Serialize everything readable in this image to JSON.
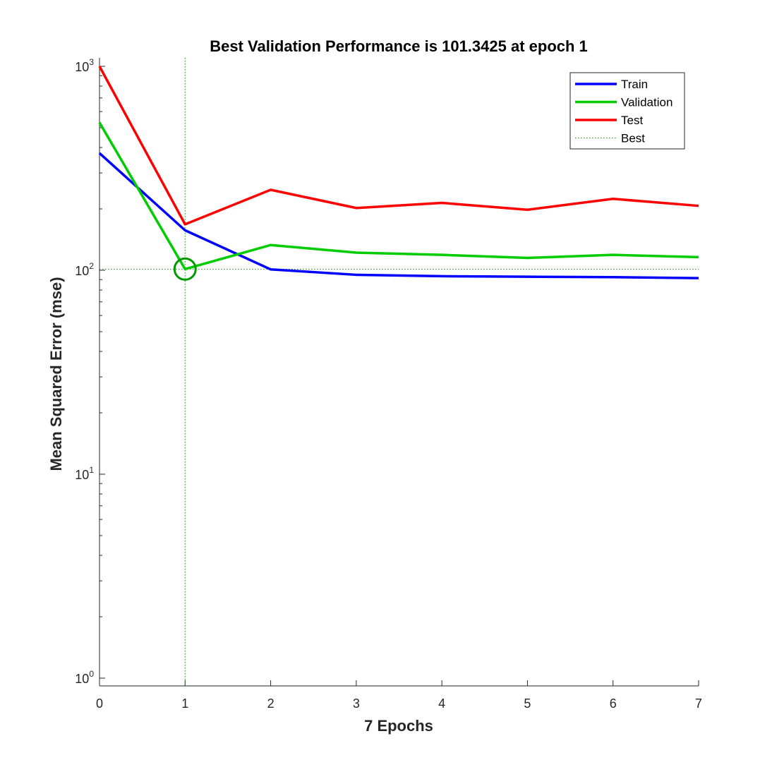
{
  "chart_data": {
    "type": "line",
    "title": "Best Validation Performance is 101.3425 at epoch 1",
    "xlabel": "7 Epochs",
    "ylabel": "Mean Squared Error  (mse)",
    "x": [
      0,
      1,
      2,
      3,
      4,
      5,
      6,
      7
    ],
    "xlim": [
      0,
      7
    ],
    "ylim": [
      0.9,
      1000
    ],
    "yscale": "log",
    "x_ticks": [
      0,
      1,
      2,
      3,
      4,
      5,
      6,
      7
    ],
    "y_ticks": [
      {
        "value": 1,
        "base": "10",
        "exponent": "0"
      },
      {
        "value": 10,
        "base": "10",
        "exponent": "1"
      },
      {
        "value": 100,
        "base": "10",
        "exponent": "2"
      },
      {
        "value": 1000,
        "base": "10",
        "exponent": "3"
      }
    ],
    "series": [
      {
        "name": "Train",
        "color": "#0000ff",
        "style": "solid",
        "values": [
          375,
          157,
          101,
          95,
          93.5,
          93,
          92.5,
          91.5
        ]
      },
      {
        "name": "Validation",
        "color": "#00cc00",
        "style": "solid",
        "values": [
          530,
          101.3425,
          133,
          122,
          119,
          115,
          119,
          116
        ]
      },
      {
        "name": "Test",
        "color": "#ff0000",
        "style": "solid",
        "values": [
          1000,
          168,
          248,
          202,
          214,
          198,
          224,
          207
        ]
      }
    ],
    "best": {
      "name": "Best",
      "epoch": 1,
      "value": 101.3425,
      "color": "#009900",
      "style": "dotted",
      "marker": "circle"
    },
    "legend_position": "top-right",
    "grid": false
  }
}
